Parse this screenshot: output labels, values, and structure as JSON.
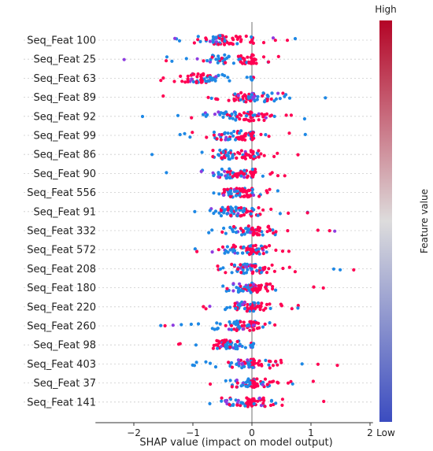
{
  "chart_data": {
    "type": "scatter",
    "subtype": "shap-beeswarm",
    "xlabel": "SHAP value (impact on model output)",
    "xlim": [
      -2.65,
      2.05
    ],
    "xticks": [
      -2,
      -1,
      0,
      1,
      2
    ],
    "xtick_labels": [
      "−2",
      "−1",
      "0",
      "1",
      "2"
    ],
    "zero_line": 0,
    "colorbar": {
      "label": "Feature value",
      "high_label": "High",
      "low_label": "Low",
      "colors": [
        "#3b4cc0",
        "#dddcdc",
        "#b40426"
      ]
    },
    "point_colors": {
      "low": "#1e88e5",
      "high": "#ff0052"
    },
    "features": [
      {
        "name": "Seq_Feat 100",
        "min": -1.6,
        "max": 0.75,
        "center": -0.5,
        "high_side": "right"
      },
      {
        "name": "Seq_Feat 25",
        "min": -2.5,
        "max": 0.75,
        "center": -0.3,
        "high_side": "right"
      },
      {
        "name": "Seq_Feat 63",
        "min": -2.0,
        "max": 0.0,
        "center": -0.8,
        "high_side": "left"
      },
      {
        "name": "Seq_Feat 89",
        "min": -1.95,
        "max": 1.3,
        "center": 0.0,
        "high_side": "left"
      },
      {
        "name": "Seq_Feat 92",
        "min": -2.15,
        "max": 1.1,
        "center": -0.2,
        "high_side": "right"
      },
      {
        "name": "Seq_Feat 99",
        "min": -1.65,
        "max": 0.95,
        "center": -0.3,
        "high_side": "right"
      },
      {
        "name": "Seq_Feat 86",
        "min": -1.75,
        "max": 0.8,
        "center": -0.3,
        "high_side": "right"
      },
      {
        "name": "Seq_Feat 90",
        "min": -1.6,
        "max": 0.9,
        "center": -0.3,
        "high_side": "right"
      },
      {
        "name": "Seq_Feat 556",
        "min": -0.95,
        "max": 1.1,
        "center": -0.2,
        "high_side": "right"
      },
      {
        "name": "Seq_Feat 91",
        "min": -1.4,
        "max": 1.1,
        "center": -0.2,
        "high_side": "right"
      },
      {
        "name": "Seq_Feat 332",
        "min": -0.8,
        "max": 1.55,
        "center": 0.0,
        "high_side": "right"
      },
      {
        "name": "Seq_Feat 572",
        "min": -1.15,
        "max": 1.2,
        "center": -0.1,
        "high_side": "right"
      },
      {
        "name": "Seq_Feat 208",
        "min": -1.0,
        "max": 1.8,
        "center": 0.0,
        "high_side": "right"
      },
      {
        "name": "Seq_Feat 180",
        "min": -0.85,
        "max": 1.35,
        "center": 0.0,
        "high_side": "right"
      },
      {
        "name": "Seq_Feat 220",
        "min": -0.85,
        "max": 0.95,
        "center": -0.1,
        "high_side": "right"
      },
      {
        "name": "Seq_Feat 260",
        "min": -1.6,
        "max": 0.8,
        "center": -0.2,
        "high_side": "right"
      },
      {
        "name": "Seq_Feat 98",
        "min": -1.25,
        "max": 0.0,
        "center": -0.45,
        "high_side": "left"
      },
      {
        "name": "Seq_Feat 403",
        "min": -1.05,
        "max": 1.55,
        "center": 0.0,
        "high_side": "right"
      },
      {
        "name": "Seq_Feat 37",
        "min": -0.8,
        "max": 1.35,
        "center": 0.0,
        "high_side": "right"
      },
      {
        "name": "Seq_Feat 141",
        "min": -1.4,
        "max": 1.3,
        "center": -0.1,
        "high_side": "right"
      }
    ]
  }
}
